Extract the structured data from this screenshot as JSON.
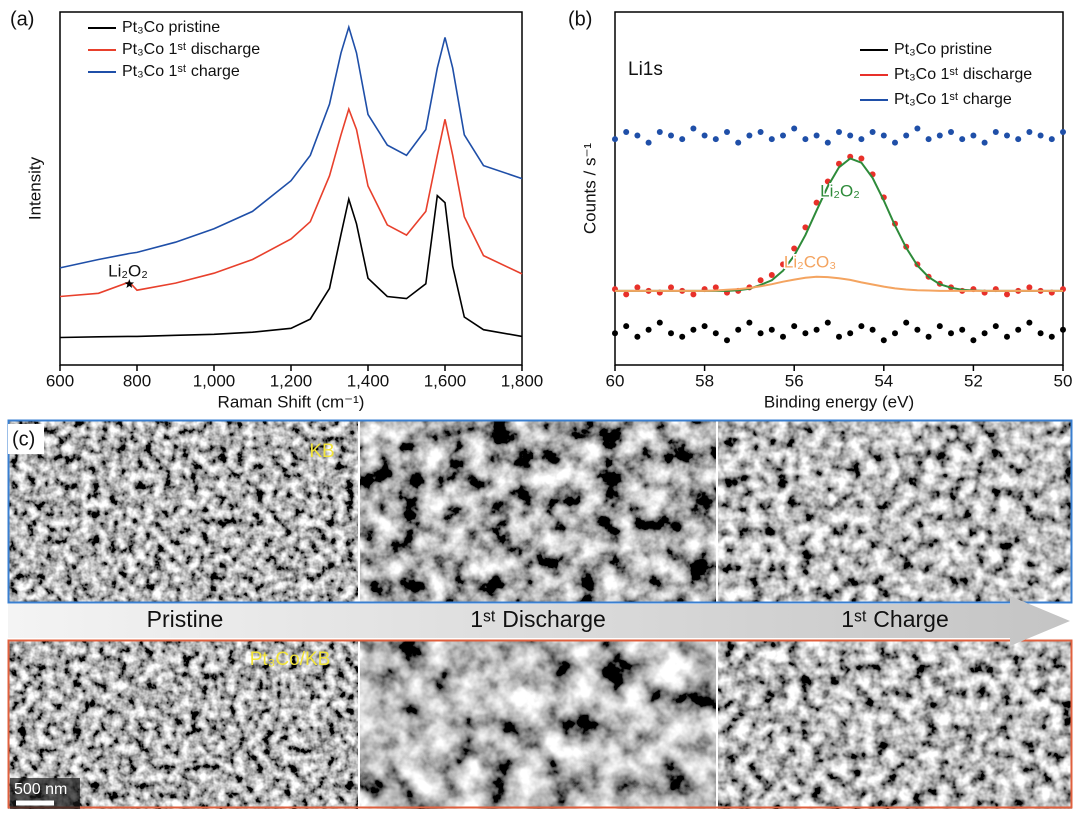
{
  "chart_data": [
    {
      "type": "line",
      "label": "(a)",
      "xlabel": "Raman Shift (cm⁻¹)",
      "ylabel": "Intensity",
      "x": [
        600,
        700,
        780,
        800,
        900,
        1000,
        1100,
        1200,
        1250,
        1300,
        1330,
        1350,
        1370,
        1400,
        1450,
        1500,
        1550,
        1580,
        1600,
        1620,
        1650,
        1700,
        1800
      ],
      "series": [
        {
          "name": "Pt₃Co pristine",
          "color": "#000000",
          "values": [
            7.8,
            8,
            8.1,
            8.1,
            8.4,
            8.7,
            9.3,
            10.4,
            13,
            21.7,
            37,
            47,
            40,
            24.6,
            19.4,
            18.8,
            23,
            48,
            46,
            28,
            13.6,
            10,
            8.1
          ]
        },
        {
          "name": "Pt₃Co 1ˢᵗ discharge",
          "color": "#e8402c",
          "values": [
            19.4,
            20.3,
            23.5,
            21.2,
            23.2,
            26,
            29.9,
            35.7,
            40.6,
            53.6,
            65.2,
            72.5,
            66.7,
            50.7,
            39.7,
            36.8,
            43.5,
            59.4,
            69.6,
            59.4,
            42,
            31,
            25.8
          ]
        },
        {
          "name": "Pt₃Co 1ˢᵗ charge",
          "color": "#1f4fa8",
          "values": [
            27.5,
            29.9,
            31.6,
            31.9,
            34.8,
            38.6,
            43.5,
            52.2,
            59.4,
            73.9,
            88.4,
            95.7,
            88.4,
            71,
            62.3,
            59.4,
            66.7,
            84.1,
            92.8,
            84.1,
            65.2,
            56.5,
            52.8
          ]
        }
      ],
      "annotations": [
        "Li₂O₂"
      ],
      "xlim": [
        600,
        1800
      ],
      "xticks": [
        600,
        800,
        {
          "value": 1000,
          "label": "1,000"
        },
        {
          "value": 1200,
          "label": "1,200"
        },
        {
          "value": 1400,
          "label": "1,400"
        },
        {
          "value": 1600,
          "label": "1,600"
        },
        {
          "value": 1800,
          "label": "1,800"
        }
      ],
      "ylim": [
        0,
        100
      ],
      "legend": "upper left"
    },
    {
      "type": "scatter",
      "label": "(b)",
      "xlabel": "Binding energy (eV)",
      "ylabel": "Counts / s⁻¹",
      "x": [
        60,
        59.75,
        59.5,
        59.25,
        59,
        58.75,
        58.5,
        58.25,
        58,
        57.75,
        57.5,
        57.25,
        57,
        56.75,
        56.5,
        56.25,
        56,
        55.75,
        55.5,
        55.25,
        55,
        54.75,
        54.5,
        54.25,
        54,
        53.75,
        53.5,
        53.25,
        53,
        52.75,
        52.5,
        52.25,
        52,
        51.75,
        51.5,
        51.25,
        51,
        50.75,
        50.5,
        50.25,
        50
      ],
      "series": [
        {
          "name": "Pt₃Co pristine",
          "color": "#000000",
          "values": [
            9,
            11,
            8,
            10,
            12,
            9,
            8,
            10,
            11,
            9,
            7,
            10,
            12,
            9,
            10,
            8,
            11,
            9,
            10,
            12,
            8,
            9,
            11,
            10,
            7,
            9,
            12,
            10,
            8,
            11,
            9,
            10,
            7,
            9,
            11,
            8,
            10,
            12,
            9,
            8,
            10
          ]
        },
        {
          "name": "Pt₃Co 1ˢᵗ discharge",
          "color": "#e8302a",
          "values": [
            21.5,
            20,
            22,
            21,
            20.5,
            22,
            21,
            20,
            21.5,
            22,
            20.5,
            21,
            22,
            24,
            25.5,
            28.5,
            33,
            39,
            46,
            52,
            57,
            59,
            58.5,
            54,
            47.5,
            40,
            33.5,
            28.5,
            25,
            23,
            22,
            21,
            21.5,
            20.5,
            21.5,
            20,
            21,
            22,
            21,
            20.5,
            21.5
          ]
        },
        {
          "name": "Pt₃Co 1ˢᵗ charge",
          "color": "#1f4fa8",
          "values": [
            64,
            66,
            65,
            63,
            66,
            65,
            64,
            67,
            65,
            64,
            66,
            63,
            65,
            66,
            64,
            65,
            67,
            64,
            65,
            63,
            66,
            65,
            64,
            66,
            65,
            63,
            65,
            67,
            64,
            65,
            66,
            64,
            65,
            63,
            66,
            65,
            64,
            66,
            65,
            64,
            66
          ]
        }
      ],
      "fits": [
        {
          "name": "Li₂O₂",
          "color": "#2e8b3a",
          "values": [
            21,
            21,
            21,
            21,
            21,
            21,
            21,
            21,
            21,
            21,
            21,
            21.2,
            21.6,
            22.7,
            24,
            26.7,
            31,
            36.8,
            43.8,
            50.6,
            56,
            58.5,
            57.3,
            53,
            46.6,
            39.5,
            33.2,
            28.2,
            24.9,
            22.9,
            21.9,
            21.3,
            21.1,
            21,
            21,
            21,
            21,
            21,
            21,
            21,
            21
          ]
        },
        {
          "name": "Li₂CO₃",
          "color": "#f4a460",
          "values": [
            21,
            21,
            21,
            21,
            21,
            21,
            21,
            21,
            21,
            21.1,
            21.3,
            21.5,
            21.8,
            22.3,
            22.9,
            23.6,
            24.2,
            24.7,
            25,
            24.9,
            24.6,
            24.1,
            23.4,
            22.8,
            22.2,
            21.7,
            21.4,
            21.2,
            21.1,
            21,
            21,
            21,
            21,
            21,
            21,
            21,
            21,
            21,
            21,
            21,
            21
          ]
        }
      ],
      "annotations": [
        "Li1s"
      ],
      "xlim": [
        60,
        50
      ],
      "xticks": [
        60,
        58,
        56,
        54,
        52,
        50
      ],
      "ylim": [
        0,
        100
      ],
      "legend": "upper right"
    }
  ],
  "sem_panel": {
    "label": "(c)",
    "stages": [
      "Pristine",
      "1ˢᵗ Discharge",
      "1ˢᵗ Charge"
    ],
    "rows": [
      "KB",
      "Pt₃Co/KB"
    ],
    "scale_bar": "500 nm"
  }
}
